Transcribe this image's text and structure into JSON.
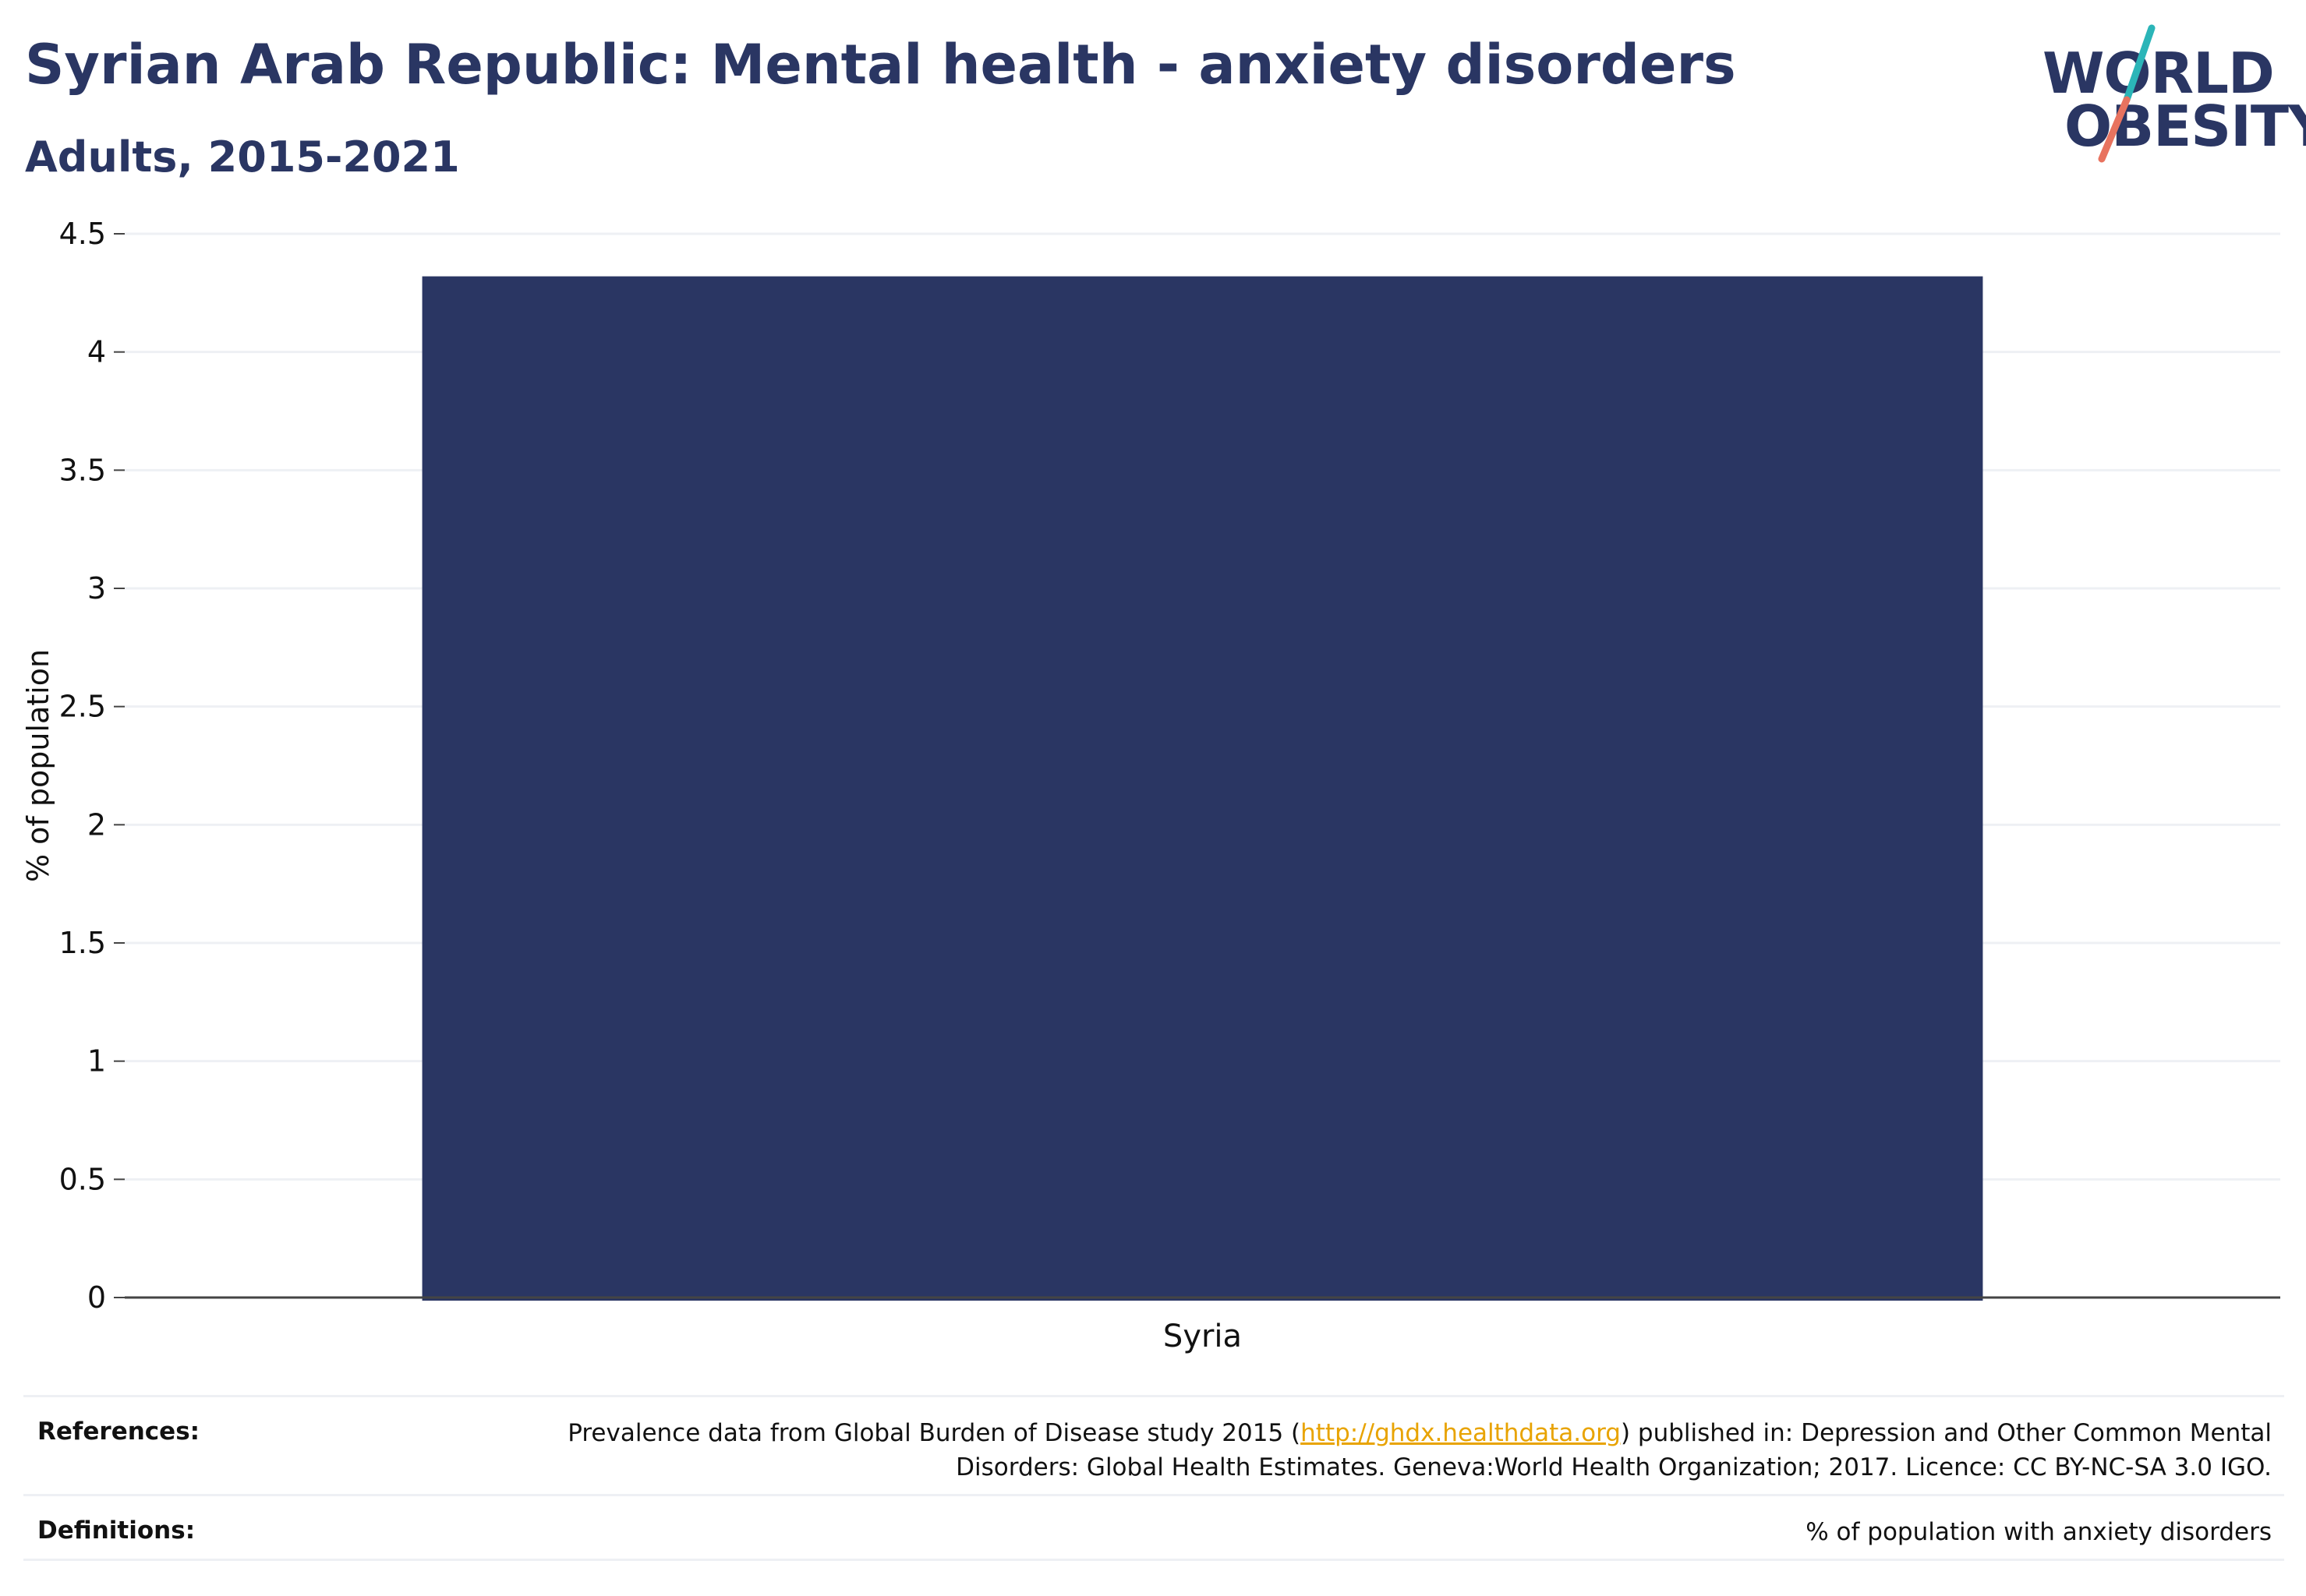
{
  "header": {
    "title": "Syrian Arab Republic: Mental health - anxiety disorders",
    "subtitle": "Adults, 2015-2021"
  },
  "logo": {
    "line1": "WORLD",
    "line2": "OBESITY",
    "accent_teal": "#2bb5b8",
    "accent_coral": "#e8735f"
  },
  "colors": {
    "bar": "#2a3663",
    "text": "#2a3663",
    "grid": "#eef0f4",
    "axis": "#444444",
    "link": "#e8a300"
  },
  "chart_data": {
    "type": "bar",
    "categories": [
      "Syria"
    ],
    "values": [
      4.32
    ],
    "ylabel": "% of population",
    "xlabel": "",
    "ylim": [
      0,
      4.5
    ],
    "yticks": [
      0,
      0.5,
      1,
      1.5,
      2,
      2.5,
      3,
      3.5,
      4,
      4.5
    ],
    "ytick_labels": [
      "0",
      "0.5",
      "1",
      "1.5",
      "2",
      "2.5",
      "3",
      "3.5",
      "4",
      "4.5"
    ],
    "grid": true,
    "legend": "none"
  },
  "references": {
    "label": "References:",
    "text_before": "Prevalence data from Global Burden of Disease study 2015 (",
    "link": "http://ghdx.healthdata.org",
    "text_after": ") published in: Depression and Other Common Mental Disorders: Global Health Estimates. Geneva:World Health Organization; 2017. Licence: CC BY-NC-SA 3.0 IGO."
  },
  "definitions": {
    "label": "Definitions:",
    "text": "% of population with anxiety disorders"
  }
}
